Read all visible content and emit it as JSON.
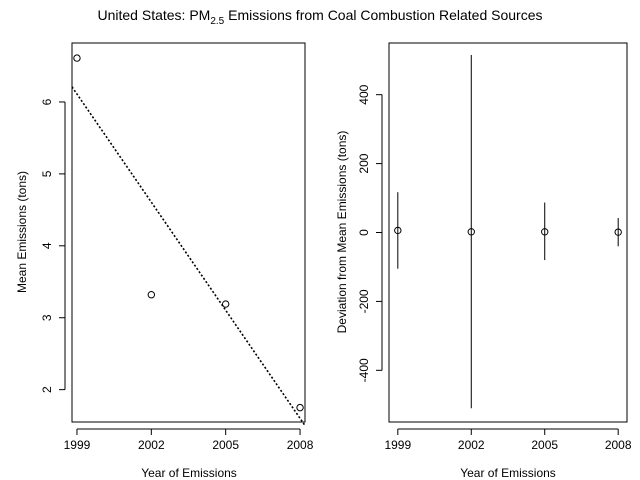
{
  "title": {
    "prefix": "United States: PM",
    "subscript": "2.5",
    "suffix": " Emissions from Coal Combustion Related Sources"
  },
  "chart_data": [
    {
      "type": "scatter",
      "title": "",
      "xlabel": "Year of Emissions",
      "ylabel": "Mean Emissions (tons)",
      "xlim": [
        1998.8,
        2008.2
      ],
      "ylim": [
        1.55,
        6.82
      ],
      "x_ticks": [
        1999,
        2002,
        2005,
        2008
      ],
      "y_ticks": [
        2,
        3,
        4,
        5,
        6
      ],
      "grid": false,
      "legend": "none",
      "marker": "open-circle",
      "x": [
        1999,
        2002,
        2005,
        2008
      ],
      "y": [
        6.61,
        3.32,
        3.19,
        1.75
      ],
      "trend_line": {
        "style": "dotted",
        "intercept_at_1999": 6.11,
        "slope_per_year": -0.501
      }
    },
    {
      "type": "scatter",
      "title": "",
      "xlabel": "Year of Emissions",
      "ylabel": "Deviation from Mean Emissions (tons)",
      "xlim": [
        1998.64,
        2008.36
      ],
      "ylim": [
        -550,
        550
      ],
      "x_ticks": [
        1999,
        2002,
        2005,
        2008
      ],
      "y_ticks": [
        -400,
        -200,
        0,
        200,
        400
      ],
      "grid": false,
      "legend": "none",
      "marker": "open-circle",
      "x": [
        1999,
        2002,
        2005,
        2008
      ],
      "y": [
        6,
        2,
        2,
        1
      ],
      "ranges": [
        {
          "x": 1999,
          "low": -105,
          "high": 117
        },
        {
          "x": 2002,
          "low": -510,
          "high": 515
        },
        {
          "x": 2005,
          "low": -80,
          "high": 87
        },
        {
          "x": 2008,
          "low": -40,
          "high": 42
        }
      ]
    }
  ]
}
